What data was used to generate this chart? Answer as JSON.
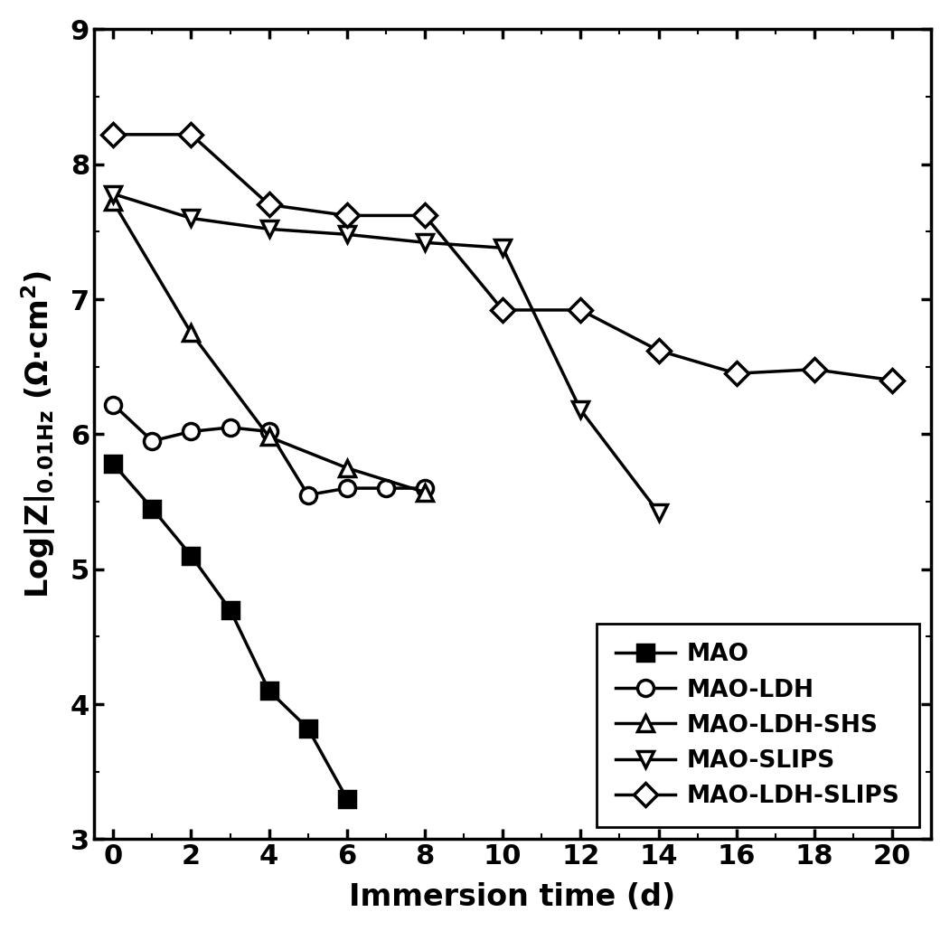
{
  "series": [
    {
      "key": "MAO",
      "x": [
        0,
        1,
        2,
        3,
        4,
        5,
        6
      ],
      "y": [
        5.78,
        5.45,
        5.1,
        4.7,
        4.1,
        3.82,
        3.3
      ],
      "marker": "s",
      "label": "MAO",
      "filled": true
    },
    {
      "key": "MAO-LDH",
      "x": [
        0,
        1,
        2,
        3,
        4,
        5,
        6,
        7,
        8
      ],
      "y": [
        6.22,
        5.95,
        6.02,
        6.05,
        6.02,
        5.55,
        5.6,
        5.6,
        5.6
      ],
      "marker": "o",
      "label": "MAO-LDH",
      "filled": false
    },
    {
      "key": "MAO-LDH-SHS",
      "x": [
        0,
        2,
        4,
        6,
        8
      ],
      "y": [
        7.72,
        6.75,
        5.98,
        5.75,
        5.57
      ],
      "marker": "^",
      "label": "MAO-LDH-SHS",
      "filled": false
    },
    {
      "key": "MAO-SLIPS",
      "x": [
        0,
        2,
        4,
        6,
        8,
        10,
        12,
        14
      ],
      "y": [
        7.78,
        7.6,
        7.52,
        7.48,
        7.42,
        7.38,
        6.18,
        5.42
      ],
      "marker": "v",
      "label": "MAO-SLIPS",
      "filled": false
    },
    {
      "key": "MAO-LDH-SLIPS",
      "x": [
        0,
        2,
        4,
        6,
        8,
        10,
        12,
        14,
        16,
        18,
        20
      ],
      "y": [
        8.22,
        8.22,
        7.7,
        7.62,
        7.62,
        6.92,
        6.92,
        6.62,
        6.45,
        6.48,
        6.4
      ],
      "marker": "D",
      "label": "MAO-LDH-SLIPS",
      "filled": false
    }
  ],
  "xlabel": "Immersion time (d)",
  "ylim": [
    3,
    9
  ],
  "xlim": [
    -0.5,
    21
  ],
  "xticks": [
    0,
    2,
    4,
    6,
    8,
    10,
    12,
    14,
    16,
    18,
    20
  ],
  "yticks": [
    3,
    4,
    5,
    6,
    7,
    8,
    9
  ],
  "line_color": "#000000",
  "background_color": "#ffffff",
  "axis_label_fontsize": 24,
  "tick_fontsize": 22,
  "legend_fontsize": 19,
  "marker_size": 13,
  "line_width": 2.5,
  "marker_edge_width": 2.5
}
